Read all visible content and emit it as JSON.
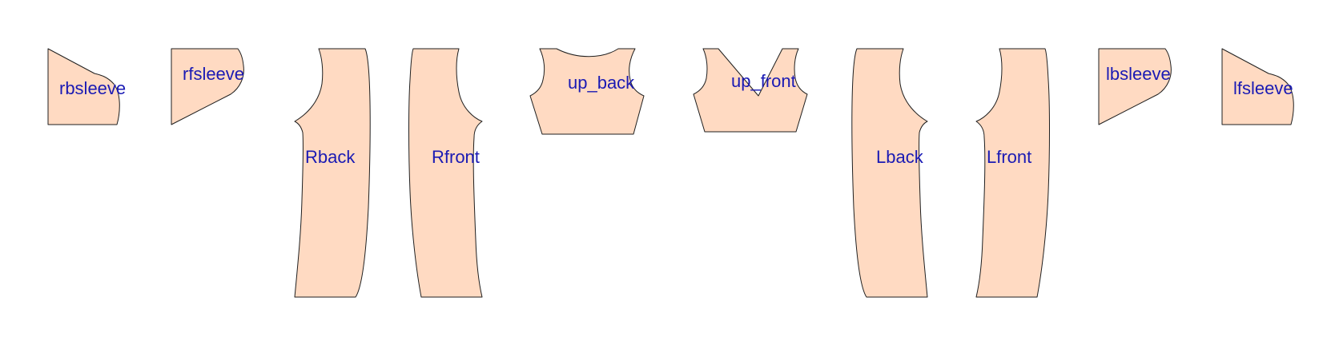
{
  "colors": {
    "background": "#ffffff",
    "piece_fill": "#ffdac2",
    "piece_stroke": "#1f1f1f",
    "label_color": "#1a1ab4"
  },
  "pieces": [
    {
      "id": "rbsleeve",
      "label": "rbsleeve"
    },
    {
      "id": "rfsleeve",
      "label": "rfsleeve"
    },
    {
      "id": "rback",
      "label": "Rback"
    },
    {
      "id": "rfront",
      "label": "Rfront"
    },
    {
      "id": "up_back",
      "label": "up_back"
    },
    {
      "id": "up_front",
      "label": "up_front"
    },
    {
      "id": "lback",
      "label": "Lback"
    },
    {
      "id": "lfront",
      "label": "Lfront"
    },
    {
      "id": "lbsleeve",
      "label": "lbsleeve"
    },
    {
      "id": "lfsleeve",
      "label": "lfsleeve"
    }
  ]
}
